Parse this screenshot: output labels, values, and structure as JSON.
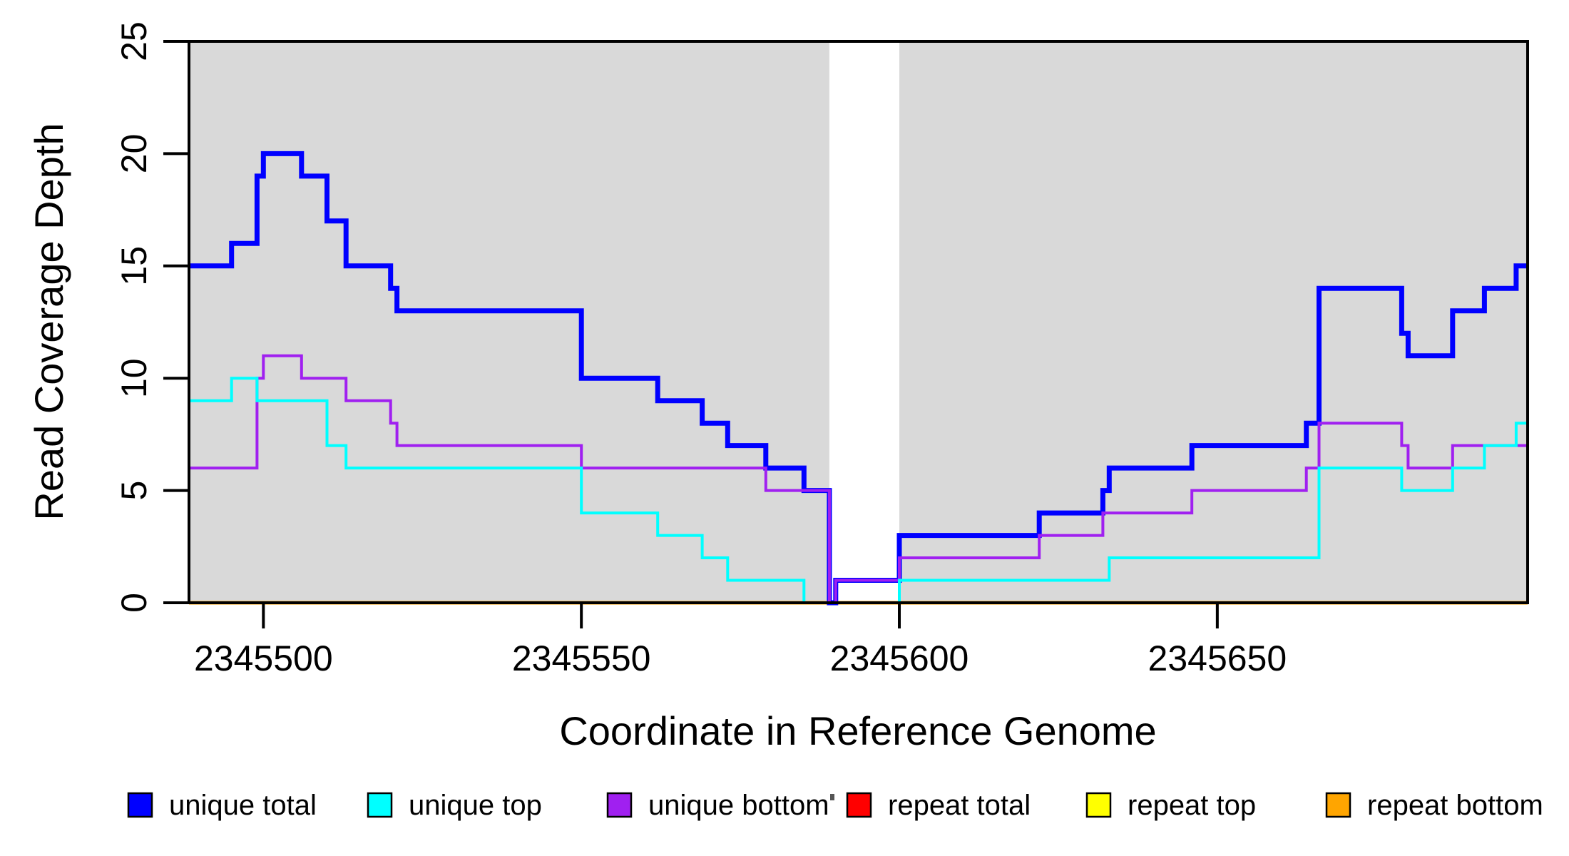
{
  "figure": {
    "xlabel": "Coordinate in Reference Genome",
    "ylabel": "Read Coverage Depth"
  },
  "chart_data": {
    "type": "line",
    "subtype": "step-coverage",
    "title": "",
    "xlabel": "Coordinate in Reference Genome",
    "ylabel": "Read Coverage Depth",
    "xlim": [
      2345488.3,
      2345698.8
    ],
    "ylim": [
      0,
      25
    ],
    "x_ticks": [
      2345500,
      2345550,
      2345600,
      2345650
    ],
    "y_ticks": [
      0,
      5,
      10,
      15,
      20,
      25
    ],
    "grid": false,
    "legend_position": "bottom",
    "plot_background": "#ffffff",
    "shaded_region_color": "#d9d9d9",
    "shaded_regions": [
      {
        "start": 2345488.3,
        "end": 2345589,
        "label": "unique-alignability-region-left"
      },
      {
        "start": 2345600,
        "end": 2345698.8,
        "label": "unique-alignability-region-right"
      }
    ],
    "gap_region": {
      "start": 2345589,
      "end": 2345600,
      "label": "repeat-region-white-gap"
    },
    "draw_order": [
      "repeat total",
      "repeat top",
      "repeat bottom",
      "unique total",
      "unique bottom",
      "unique top"
    ],
    "series": [
      {
        "name": "unique total",
        "color": "#0000ff",
        "line_width": 7,
        "segments": [
          [
            2345488.3,
            2345495,
            15
          ],
          [
            2345495,
            2345499,
            16
          ],
          [
            2345499,
            2345500,
            19
          ],
          [
            2345500,
            2345506,
            20
          ],
          [
            2345506,
            2345510,
            19
          ],
          [
            2345510,
            2345513,
            17
          ],
          [
            2345513,
            2345520,
            15
          ],
          [
            2345520,
            2345521,
            14
          ],
          [
            2345521,
            2345550,
            13
          ],
          [
            2345550,
            2345562,
            10
          ],
          [
            2345562,
            2345569,
            9
          ],
          [
            2345569,
            2345573,
            8
          ],
          [
            2345573,
            2345579,
            7
          ],
          [
            2345579,
            2345585,
            6
          ],
          [
            2345585,
            2345589,
            5
          ],
          [
            2345589,
            2345590,
            0
          ],
          [
            2345590,
            2345600,
            1
          ],
          [
            2345600,
            2345622,
            3
          ],
          [
            2345622,
            2345632,
            4
          ],
          [
            2345632,
            2345633,
            5
          ],
          [
            2345633,
            2345646,
            6
          ],
          [
            2345646,
            2345664,
            7
          ],
          [
            2345664,
            2345666,
            8
          ],
          [
            2345666,
            2345679,
            14
          ],
          [
            2345679,
            2345680,
            12
          ],
          [
            2345680,
            2345687,
            11
          ],
          [
            2345687,
            2345692,
            13
          ],
          [
            2345692,
            2345697,
            14
          ],
          [
            2345697,
            2345698.8,
            15
          ]
        ]
      },
      {
        "name": "unique top",
        "color": "#00ffff",
        "line_width": 4,
        "segments": [
          [
            2345488.3,
            2345495,
            9
          ],
          [
            2345495,
            2345499,
            10
          ],
          [
            2345499,
            2345510,
            9
          ],
          [
            2345510,
            2345513,
            7
          ],
          [
            2345513,
            2345550,
            6
          ],
          [
            2345550,
            2345562,
            4
          ],
          [
            2345562,
            2345569,
            3
          ],
          [
            2345569,
            2345573,
            2
          ],
          [
            2345573,
            2345585,
            1
          ],
          [
            2345585,
            2345600,
            0
          ],
          [
            2345600,
            2345633,
            1
          ],
          [
            2345633,
            2345666,
            2
          ],
          [
            2345666,
            2345679,
            6
          ],
          [
            2345679,
            2345687,
            5
          ],
          [
            2345687,
            2345692,
            6
          ],
          [
            2345692,
            2345697,
            7
          ],
          [
            2345697,
            2345698.8,
            8
          ]
        ]
      },
      {
        "name": "unique bottom",
        "color": "#a020f0",
        "line_width": 4,
        "segments": [
          [
            2345488.3,
            2345499,
            6
          ],
          [
            2345499,
            2345500,
            10
          ],
          [
            2345500,
            2345506,
            11
          ],
          [
            2345506,
            2345513,
            10
          ],
          [
            2345513,
            2345520,
            9
          ],
          [
            2345520,
            2345521,
            8
          ],
          [
            2345521,
            2345550,
            7
          ],
          [
            2345550,
            2345579,
            6
          ],
          [
            2345579,
            2345589,
            5
          ],
          [
            2345589,
            2345590,
            0
          ],
          [
            2345590,
            2345600,
            1
          ],
          [
            2345600,
            2345622,
            2
          ],
          [
            2345622,
            2345632,
            3
          ],
          [
            2345632,
            2345646,
            4
          ],
          [
            2345646,
            2345664,
            5
          ],
          [
            2345664,
            2345666,
            6
          ],
          [
            2345666,
            2345679,
            8
          ],
          [
            2345679,
            2345680,
            7
          ],
          [
            2345680,
            2345687,
            6
          ],
          [
            2345687,
            2345698.8,
            7
          ]
        ]
      },
      {
        "name": "repeat total",
        "color": "#ff0000",
        "line_width": 4,
        "segments": [
          [
            2345488.3,
            2345698.8,
            0
          ]
        ]
      },
      {
        "name": "repeat top",
        "color": "#ffff00",
        "line_width": 4,
        "segments": [
          [
            2345488.3,
            2345698.8,
            0
          ]
        ]
      },
      {
        "name": "repeat bottom",
        "color": "#ffa500",
        "line_width": 5,
        "segments": [
          [
            2345488.3,
            2345698.8,
            0
          ]
        ]
      }
    ]
  },
  "legend": {
    "items": [
      {
        "label": "unique total",
        "color": "#0000ff"
      },
      {
        "label": "unique top",
        "color": "#00ffff"
      },
      {
        "label": "unique bottom",
        "color": "#a020f0"
      },
      {
        "label": "repeat total",
        "color": "#ff0000"
      },
      {
        "label": "repeat top",
        "color": "#ffff00"
      },
      {
        "label": "repeat bottom",
        "color": "#ffa500"
      }
    ]
  }
}
